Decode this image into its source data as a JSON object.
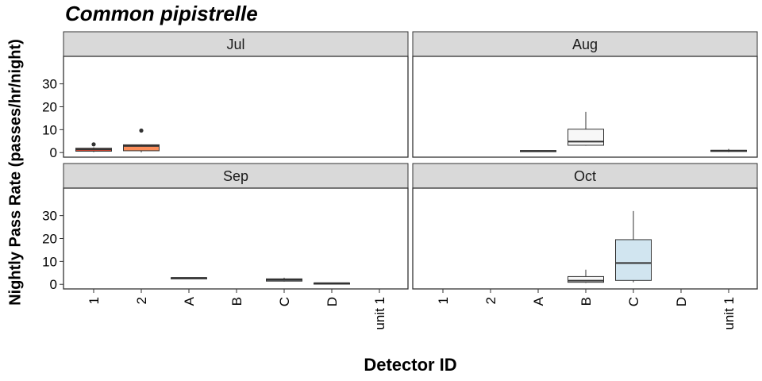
{
  "chart_data": {
    "type": "boxplot",
    "title": "Common pipistrelle",
    "xlabel": "Detector ID",
    "ylabel": "Nightly Pass Rate (passes/hr/night)",
    "categories": [
      "1",
      "2",
      "A",
      "B",
      "C",
      "D",
      "unit 1"
    ],
    "ylim": [
      -2,
      42
    ],
    "yticks": [
      0,
      10,
      20,
      30
    ],
    "grid": false,
    "facet_layout": "2x2",
    "panels": [
      {
        "name": "Jul",
        "boxes": [
          {
            "category": "1",
            "min": 0.2,
            "q1": 0.6,
            "median": 1.4,
            "q3": 1.9,
            "max": 2.3,
            "outliers": [
              3.6
            ],
            "fill": "#e34a33"
          },
          {
            "category": "2",
            "min": 0.1,
            "q1": 0.8,
            "median": 2.9,
            "q3": 3.4,
            "max": 3.6,
            "outliers": [
              9.6
            ],
            "fill": "#fc8d59"
          }
        ]
      },
      {
        "name": "Aug",
        "boxes": [
          {
            "category": "A",
            "min": 0.3,
            "q1": 0.5,
            "median": 0.7,
            "q3": 0.9,
            "max": 1.0,
            "outliers": [],
            "fill": "#f7f7f7"
          },
          {
            "category": "B",
            "min": 3.0,
            "q1": 3.2,
            "median": 4.8,
            "q3": 10.2,
            "max": 17.8,
            "outliers": [],
            "fill": "#f7f7f7"
          },
          {
            "category": "unit 1",
            "min": 0.2,
            "q1": 0.5,
            "median": 0.8,
            "q3": 1.0,
            "max": 1.6,
            "outliers": [],
            "fill": "#f7f7f7"
          }
        ]
      },
      {
        "name": "Sep",
        "boxes": [
          {
            "category": "A",
            "min": 2.6,
            "q1": 2.7,
            "median": 2.8,
            "q3": 2.9,
            "max": 3.0,
            "outliers": [],
            "fill": "#f7f7f7"
          },
          {
            "category": "C",
            "min": 1.2,
            "q1": 1.4,
            "median": 2.0,
            "q3": 2.4,
            "max": 2.9,
            "outliers": [],
            "fill": "#d1e5f0"
          },
          {
            "category": "D",
            "min": 0.3,
            "q1": 0.4,
            "median": 0.5,
            "q3": 0.6,
            "max": 0.7,
            "outliers": [],
            "fill": "#f7f7f7"
          }
        ]
      },
      {
        "name": "Oct",
        "boxes": [
          {
            "category": "B",
            "min": 0.6,
            "q1": 0.9,
            "median": 1.6,
            "q3": 3.4,
            "max": 6.4,
            "outliers": [],
            "fill": "#f7f7f7"
          },
          {
            "category": "C",
            "min": 0.9,
            "q1": 1.7,
            "median": 9.3,
            "q3": 19.5,
            "max": 32.0,
            "outliers": [],
            "fill": "#d1e5f0"
          }
        ]
      }
    ]
  }
}
